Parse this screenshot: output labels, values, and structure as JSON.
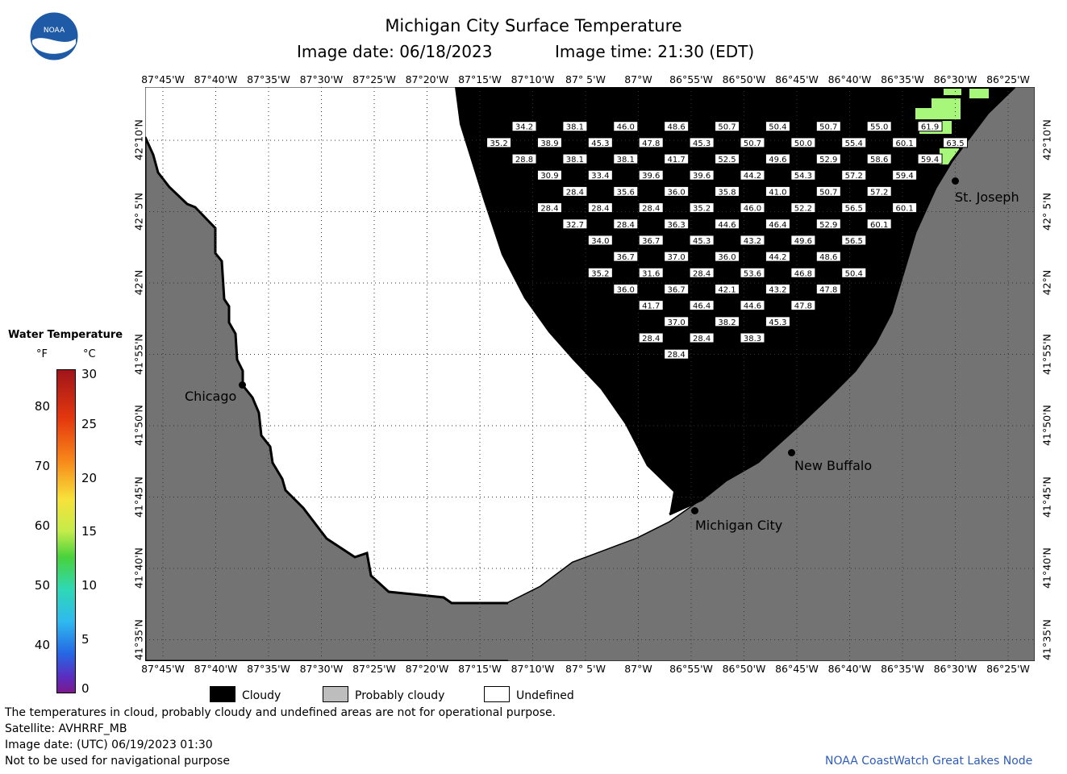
{
  "header": {
    "title": "Michigan City Surface Temperature",
    "date_label": "Image date: 06/18/2023",
    "time_label": "Image time: 21:30 (EDT)"
  },
  "axes": {
    "longitudes": [
      "87°45'W",
      "87°40'W",
      "87°35'W",
      "87°30'W",
      "87°25'W",
      "87°20'W",
      "87°15'W",
      "87°10'W",
      "87° 5'W",
      "87°W",
      "86°55'W",
      "86°50'W",
      "86°45'W",
      "86°40'W",
      "86°35'W",
      "86°30'W",
      "86°25'W"
    ],
    "latitudes": [
      "42°10'N",
      "42° 5'N",
      "42°N",
      "41°55'N",
      "41°50'N",
      "41°45'N",
      "41°40'N",
      "41°35'N"
    ]
  },
  "cities": {
    "chicago": "Chicago",
    "st_joseph": "St. Joseph",
    "new_buffalo": "New Buffalo",
    "michigan_city": "Michigan City"
  },
  "temperatures": [
    {
      "v": "34.2",
      "lon": -87.18,
      "lat": 42.183
    },
    {
      "v": "38.1",
      "lon": -87.1,
      "lat": 42.183
    },
    {
      "v": "46.0",
      "lon": -87.02,
      "lat": 42.183
    },
    {
      "v": "48.6",
      "lon": -86.94,
      "lat": 42.183
    },
    {
      "v": "50.7",
      "lon": -86.86,
      "lat": 42.183
    },
    {
      "v": "50.4",
      "lon": -86.78,
      "lat": 42.183
    },
    {
      "v": "50.7",
      "lon": -86.7,
      "lat": 42.183
    },
    {
      "v": "55.0",
      "lon": -86.62,
      "lat": 42.183
    },
    {
      "v": "61.9",
      "lon": -86.54,
      "lat": 42.183
    },
    {
      "v": "35.2",
      "lon": -87.22,
      "lat": 42.164
    },
    {
      "v": "38.9",
      "lon": -87.14,
      "lat": 42.164
    },
    {
      "v": "45.3",
      "lon": -87.06,
      "lat": 42.164
    },
    {
      "v": "47.8",
      "lon": -86.98,
      "lat": 42.164
    },
    {
      "v": "45.3",
      "lon": -86.9,
      "lat": 42.164
    },
    {
      "v": "50.7",
      "lon": -86.82,
      "lat": 42.164
    },
    {
      "v": "50.0",
      "lon": -86.74,
      "lat": 42.164
    },
    {
      "v": "55.4",
      "lon": -86.66,
      "lat": 42.164
    },
    {
      "v": "60.1",
      "lon": -86.58,
      "lat": 42.164
    },
    {
      "v": "63.5",
      "lon": -86.5,
      "lat": 42.164
    },
    {
      "v": "28.8",
      "lon": -87.18,
      "lat": 42.145
    },
    {
      "v": "38.1",
      "lon": -87.1,
      "lat": 42.145
    },
    {
      "v": "38.1",
      "lon": -87.02,
      "lat": 42.145
    },
    {
      "v": "41.7",
      "lon": -86.94,
      "lat": 42.145
    },
    {
      "v": "52.5",
      "lon": -86.86,
      "lat": 42.145
    },
    {
      "v": "49.6",
      "lon": -86.78,
      "lat": 42.145
    },
    {
      "v": "52.9",
      "lon": -86.7,
      "lat": 42.145
    },
    {
      "v": "58.6",
      "lon": -86.62,
      "lat": 42.145
    },
    {
      "v": "59.4",
      "lon": -86.54,
      "lat": 42.145
    },
    {
      "v": "30.9",
      "lon": -87.14,
      "lat": 42.126
    },
    {
      "v": "33.4",
      "lon": -87.06,
      "lat": 42.126
    },
    {
      "v": "39.6",
      "lon": -86.98,
      "lat": 42.126
    },
    {
      "v": "39.6",
      "lon": -86.9,
      "lat": 42.126
    },
    {
      "v": "44.2",
      "lon": -86.82,
      "lat": 42.126
    },
    {
      "v": "54.3",
      "lon": -86.74,
      "lat": 42.126
    },
    {
      "v": "57.2",
      "lon": -86.66,
      "lat": 42.126
    },
    {
      "v": "59.4",
      "lon": -86.58,
      "lat": 42.126
    },
    {
      "v": "28.4",
      "lon": -87.1,
      "lat": 42.107
    },
    {
      "v": "35.6",
      "lon": -87.02,
      "lat": 42.107
    },
    {
      "v": "36.0",
      "lon": -86.94,
      "lat": 42.107
    },
    {
      "v": "35.8",
      "lon": -86.86,
      "lat": 42.107
    },
    {
      "v": "41.0",
      "lon": -86.78,
      "lat": 42.107
    },
    {
      "v": "50.7",
      "lon": -86.7,
      "lat": 42.107
    },
    {
      "v": "57.2",
      "lon": -86.62,
      "lat": 42.107
    },
    {
      "v": "28.4",
      "lon": -87.14,
      "lat": 42.088
    },
    {
      "v": "28.4",
      "lon": -87.06,
      "lat": 42.088
    },
    {
      "v": "28.4",
      "lon": -86.98,
      "lat": 42.088
    },
    {
      "v": "35.2",
      "lon": -86.9,
      "lat": 42.088
    },
    {
      "v": "46.0",
      "lon": -86.82,
      "lat": 42.088
    },
    {
      "v": "52.2",
      "lon": -86.74,
      "lat": 42.088
    },
    {
      "v": "56.5",
      "lon": -86.66,
      "lat": 42.088
    },
    {
      "v": "60.1",
      "lon": -86.58,
      "lat": 42.088
    },
    {
      "v": "32.7",
      "lon": -87.1,
      "lat": 42.069
    },
    {
      "v": "28.4",
      "lon": -87.02,
      "lat": 42.069
    },
    {
      "v": "36.3",
      "lon": -86.94,
      "lat": 42.069
    },
    {
      "v": "44.6",
      "lon": -86.86,
      "lat": 42.069
    },
    {
      "v": "46.4",
      "lon": -86.78,
      "lat": 42.069
    },
    {
      "v": "52.9",
      "lon": -86.7,
      "lat": 42.069
    },
    {
      "v": "60.1",
      "lon": -86.62,
      "lat": 42.069
    },
    {
      "v": "34.0",
      "lon": -87.06,
      "lat": 42.05
    },
    {
      "v": "36.7",
      "lon": -86.98,
      "lat": 42.05
    },
    {
      "v": "45.3",
      "lon": -86.9,
      "lat": 42.05
    },
    {
      "v": "43.2",
      "lon": -86.82,
      "lat": 42.05
    },
    {
      "v": "49.6",
      "lon": -86.74,
      "lat": 42.05
    },
    {
      "v": "56.5",
      "lon": -86.66,
      "lat": 42.05
    },
    {
      "v": "36.7",
      "lon": -87.02,
      "lat": 42.031
    },
    {
      "v": "37.0",
      "lon": -86.94,
      "lat": 42.031
    },
    {
      "v": "36.0",
      "lon": -86.86,
      "lat": 42.031
    },
    {
      "v": "44.2",
      "lon": -86.78,
      "lat": 42.031
    },
    {
      "v": "48.6",
      "lon": -86.7,
      "lat": 42.031
    },
    {
      "v": "35.2",
      "lon": -87.06,
      "lat": 42.012
    },
    {
      "v": "31.6",
      "lon": -86.98,
      "lat": 42.012
    },
    {
      "v": "28.4",
      "lon": -86.9,
      "lat": 42.012
    },
    {
      "v": "53.6",
      "lon": -86.82,
      "lat": 42.012
    },
    {
      "v": "46.8",
      "lon": -86.74,
      "lat": 42.012
    },
    {
      "v": "50.4",
      "lon": -86.66,
      "lat": 42.012
    },
    {
      "v": "36.0",
      "lon": -87.02,
      "lat": 41.993
    },
    {
      "v": "36.7",
      "lon": -86.94,
      "lat": 41.993
    },
    {
      "v": "42.1",
      "lon": -86.86,
      "lat": 41.993
    },
    {
      "v": "43.2",
      "lon": -86.78,
      "lat": 41.993
    },
    {
      "v": "47.8",
      "lon": -86.7,
      "lat": 41.993
    },
    {
      "v": "41.7",
      "lon": -86.98,
      "lat": 41.974
    },
    {
      "v": "46.4",
      "lon": -86.9,
      "lat": 41.974
    },
    {
      "v": "44.6",
      "lon": -86.82,
      "lat": 41.974
    },
    {
      "v": "47.8",
      "lon": -86.74,
      "lat": 41.974
    },
    {
      "v": "37.0",
      "lon": -86.94,
      "lat": 41.955
    },
    {
      "v": "38.2",
      "lon": -86.86,
      "lat": 41.955
    },
    {
      "v": "45.3",
      "lon": -86.78,
      "lat": 41.955
    },
    {
      "v": "28.4",
      "lon": -86.98,
      "lat": 41.936
    },
    {
      "v": "28.4",
      "lon": -86.9,
      "lat": 41.936
    },
    {
      "v": "38.3",
      "lon": -86.82,
      "lat": 41.936
    },
    {
      "v": "28.4",
      "lon": -86.94,
      "lat": 41.917
    }
  ],
  "legend": {
    "title": "Water Temperature",
    "unit_f": "°F",
    "unit_c": "°C",
    "f_ticks": [
      "80",
      "70",
      "60",
      "50",
      "40"
    ],
    "c_ticks": [
      "30",
      "25",
      "20",
      "15",
      "10",
      "5",
      "0"
    ],
    "cloudy": "Cloudy",
    "probably_cloudy": "Probably cloudy",
    "undefined": "Undefined",
    "colors": {
      "cloudy": "#000000",
      "probably_cloudy": "#bdbdbd",
      "undefined": "#ffffff",
      "land": "#737373",
      "warm_water": "#a6f77a"
    }
  },
  "footer": {
    "disclaimer": "The temperatures in cloud, probably cloudy and undefined areas are not for operational purpose.",
    "satellite": "Satellite: AVHRRF_MB",
    "utc_date": "Image date: (UTC) 06/19/2023  01:30",
    "nav": "Not to be used for navigational purpose",
    "credit": "NOAA CoastWatch Great Lakes Node"
  }
}
